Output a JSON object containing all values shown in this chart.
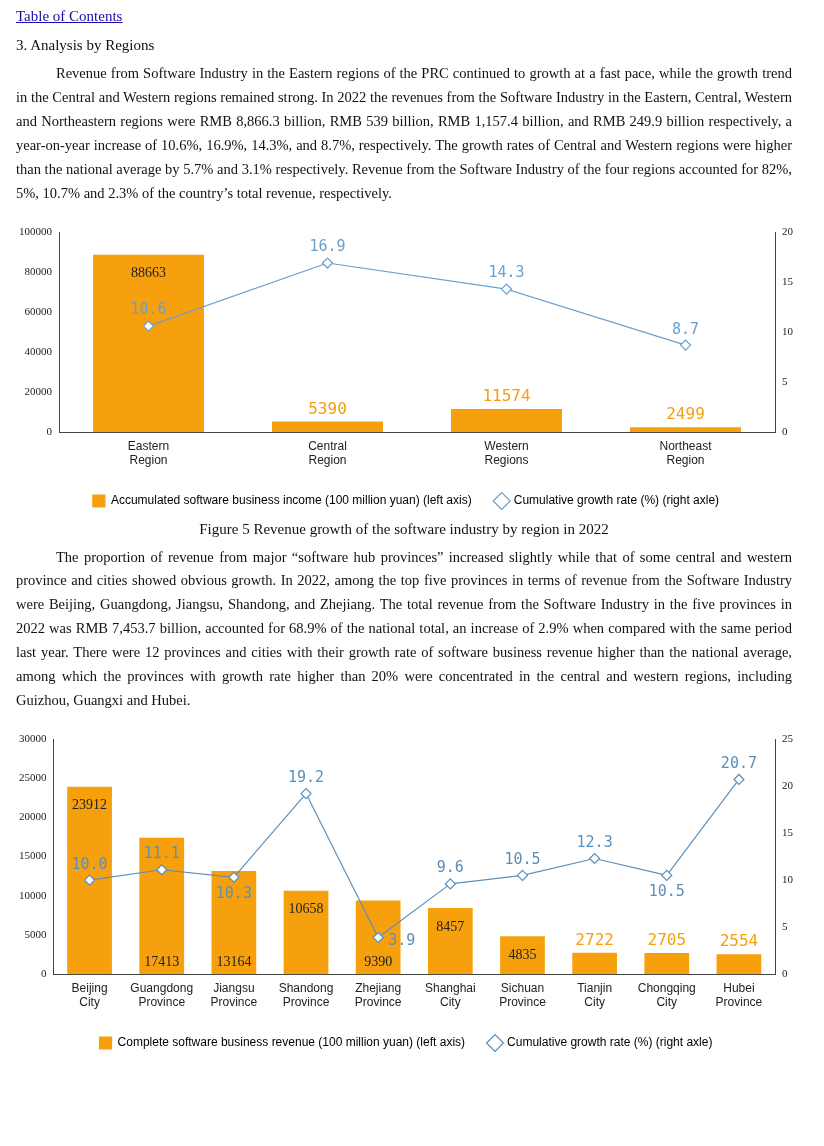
{
  "chart_data": [
    {
      "type": "bar",
      "title": "Figure 5 Revenue growth of the software industry by region in 2022",
      "annotations": [
        "Table of Contents",
        "3. Analysis by Regions",
        "Revenue from Software Industry in the Eastern regions of the PRC continued to growth at a fast pace, while the growth trend in the Central and Western regions remained strong. In 2022 the revenues from the Software Industry in the Eastern, Central, Western and Northeastern regions were RMB 8,866.3 billion, RMB 539 billion, RMB 1,157.4 billion, and RMB 249.9 billion respectively, a year-on-year increase of 10.6%, 16.9%, 14.3%, and 8.7%, respectively. The growth rates of Central and Western regions were higher than the national average by 5.7% and 3.1% respectively. Revenue from the Software Industry of the four regions accounted for 82%, 5%, 10.7% and 2.3% of the country’s total revenue, respectively."
      ],
      "categories": [
        "Eastern Region",
        "Central Region",
        "Western Regions",
        "Northeast Region"
      ],
      "series": [
        {
          "name": "Accumulated software business income (100 million yuan) (left axis)",
          "color": "#f5a00c",
          "values": [
            88663,
            5390,
            11574,
            2499
          ],
          "value_labels": [
            "88663",
            "5390",
            "11574",
            "2499"
          ]
        },
        {
          "type": "line",
          "name": "Cumulative growth rate (%) (right axle)",
          "color": "#6a9fcf",
          "axis": "y2",
          "marker": "diamond",
          "values": [
            10.6,
            16.9,
            14.3,
            8.7
          ],
          "value_labels": [
            "10.6",
            "16.9",
            "14.3",
            "8.7"
          ]
        }
      ],
      "ylim": [
        0,
        100000
      ],
      "yticks": [
        0,
        20000,
        40000,
        60000,
        80000,
        100000
      ],
      "y2lim": [
        0,
        20
      ],
      "y2ticks": [
        0,
        5,
        10,
        15,
        20
      ],
      "grid": false,
      "legend": "bottom"
    },
    {
      "type": "bar",
      "annotations": [
        "The proportion of revenue from major “software hub provinces” increased slightly while that of some central and western province and cities showed obvious growth. In 2022, among the top five provinces in terms of revenue from the Software Industry were Beijing, Guangdong, Jiangsu, Shandong, and Zhejiang. The total revenue from the Software Industry in the five provinces in 2022 was RMB 7,453.7 billion, accounted for 68.9% of the national total, an increase of 2.9% when compared with the same period last year. There were 12 provinces and cities with their growth rate of software business revenue higher than the national average, among which the provinces with growth rate higher than 20% were concentrated in the central and western regions, including Guizhou, Guangxi and Hubei."
      ],
      "categories": [
        "Beijing City",
        "Guangdong Province",
        "Jiangsu Province",
        "Shandong Province",
        "Zhejiang Province",
        "Shanghai City",
        "Sichuan Province",
        "Tianjin City",
        "Chongqing City",
        "Hubei Province"
      ],
      "series": [
        {
          "name": "Complete software business revenue (100 million yuan) (left axis)",
          "color": "#f5a00c",
          "values": [
            23912,
            17413,
            13164,
            10658,
            9390,
            8457,
            4835,
            2722,
            2705,
            2554
          ],
          "value_labels": [
            "23912",
            "17413",
            "13164",
            "10658",
            "9390",
            "8457",
            "4835",
            "2722",
            "2705",
            "2554"
          ]
        },
        {
          "type": "line",
          "name": "Cumulative growth rate (%) (right axle)",
          "color": "#5b8fb9",
          "axis": "y2",
          "marker": "diamond",
          "values": [
            10.0,
            11.1,
            10.3,
            19.2,
            3.9,
            9.6,
            10.5,
            12.3,
            10.5,
            20.7
          ],
          "value_labels": [
            "10.0",
            "11.1",
            "10.3",
            "19.2",
            "3.9",
            "9.6",
            "10.5",
            "12.3",
            "10.5",
            "20.7"
          ]
        }
      ],
      "ylim": [
        0,
        30000
      ],
      "yticks": [
        0,
        5000,
        10000,
        15000,
        20000,
        25000,
        30000
      ],
      "y2lim": [
        0,
        25
      ],
      "y2ticks": [
        0,
        5,
        10,
        15,
        20,
        25
      ],
      "grid": false,
      "legend": "bottom"
    }
  ]
}
